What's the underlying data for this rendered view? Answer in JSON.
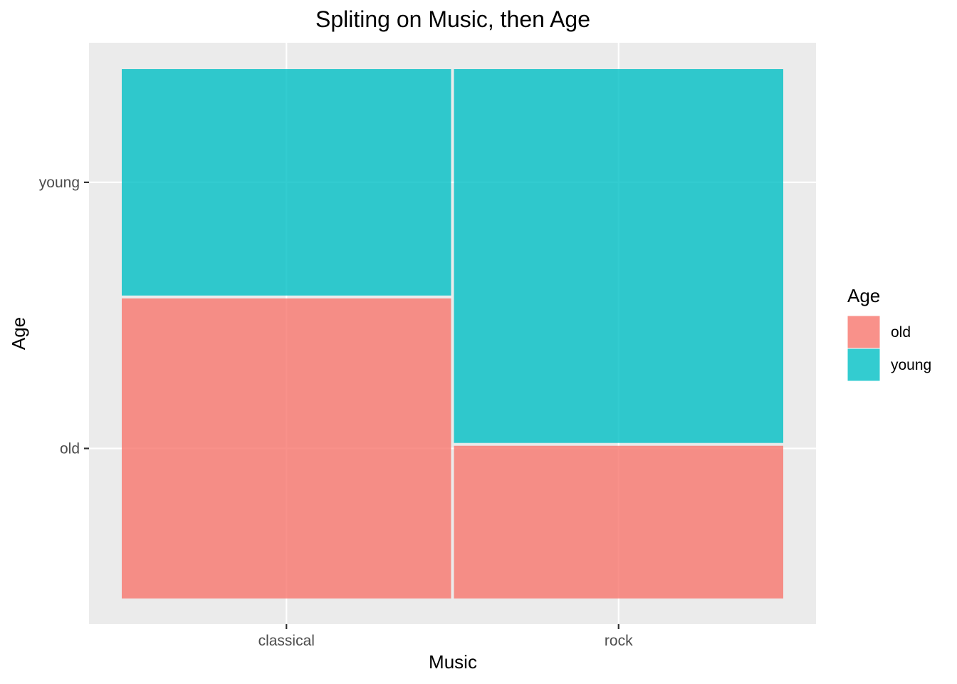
{
  "chart_data": {
    "type": "mosaic",
    "title": "Spliting on Music, then Age",
    "xlabel": "Music",
    "ylabel": "Age",
    "x_categories": [
      "classical",
      "rock"
    ],
    "y_categories": [
      "old",
      "young"
    ],
    "x_widths": [
      0.5,
      0.5
    ],
    "proportions": {
      "classical": {
        "old": 0.57,
        "young": 0.43
      },
      "rock": {
        "old": 0.29,
        "young": 0.71
      }
    },
    "legend": {
      "title": "Age",
      "placement": "right",
      "entries": [
        {
          "label": "old",
          "color": "#F8766D"
        },
        {
          "label": "young",
          "color": "#00BFC4"
        }
      ]
    },
    "grid": true,
    "panel_background": "#EBEBEB"
  }
}
